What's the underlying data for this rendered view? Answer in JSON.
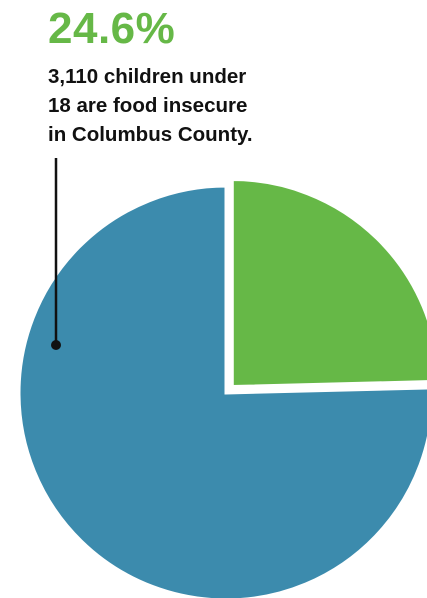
{
  "headline": {
    "value": "24.6%",
    "caption_lines": [
      "3,110 children under",
      "18 are food insecure",
      "in Columbus County."
    ]
  },
  "colors": {
    "highlight": "#66b847",
    "remainder": "#3c8bad",
    "leader": "#111111"
  },
  "chart_data": {
    "type": "pie",
    "title": "",
    "slices": [
      {
        "label": "food insecure",
        "value": 24.6,
        "color": "#66b847",
        "exploded": true
      },
      {
        "label": "",
        "value": 75.4,
        "color": "#3c8bad",
        "exploded": false
      }
    ],
    "start_angle": "12 o'clock",
    "direction": "clockwise",
    "annotation": "leader line from headline to highlighted slice"
  }
}
